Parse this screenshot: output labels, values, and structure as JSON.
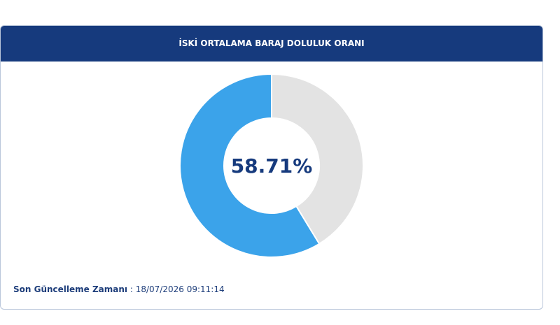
{
  "chart_data": {
    "type": "donut",
    "title": "İSKİ ORTALAMA BARAJ DOLULUK ORANI",
    "categories": [
      null,
      null
    ],
    "values": [
      58.71,
      41.29
    ],
    "value_labels": [
      "58.71%",
      null
    ],
    "colors": [
      "#3ba3ea",
      "#e3e3e3"
    ],
    "footer": {
      "label": "Son Güncelleme Zamanı",
      "value": ": 18/07/2026 09:11:14"
    }
  }
}
